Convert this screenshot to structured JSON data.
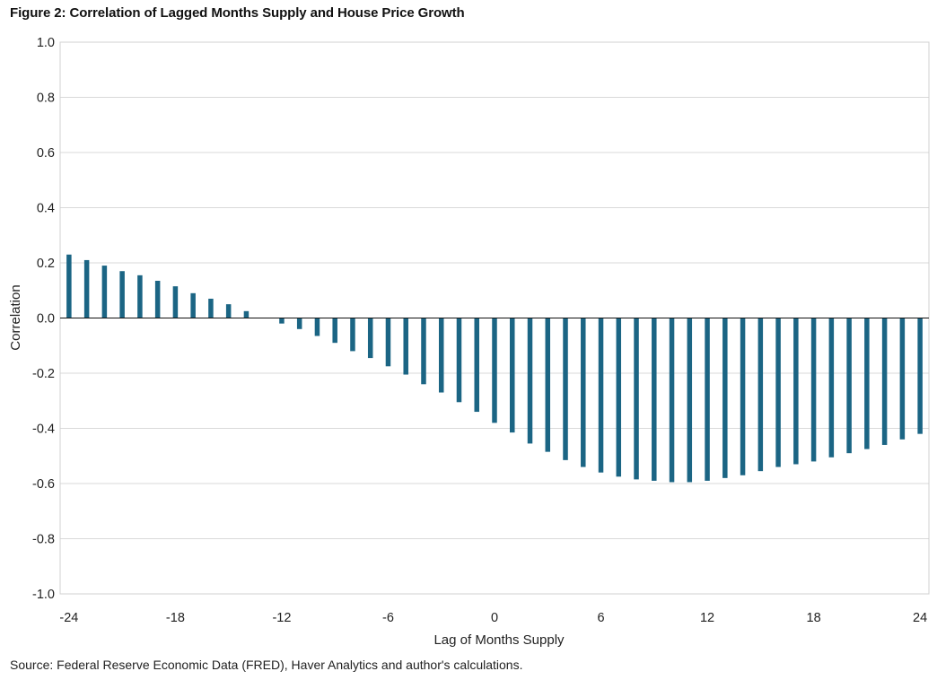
{
  "chart_data": {
    "type": "bar",
    "title": "Figure 2: Correlation of Lagged Months Supply and House Price Growth",
    "xlabel": "Lag of Months Supply",
    "ylabel": "Correlation",
    "ylim": [
      -1.0,
      1.0
    ],
    "xlim": [
      -24,
      24
    ],
    "y_ticks": [
      "1.0",
      "0.8",
      "0.6",
      "0.4",
      "0.2",
      "0.0",
      "-0.2",
      "-0.4",
      "-0.6",
      "-0.8",
      "-1.0"
    ],
    "y_tick_values": [
      1.0,
      0.8,
      0.6,
      0.4,
      0.2,
      0.0,
      -0.2,
      -0.4,
      -0.6,
      -0.8,
      -1.0
    ],
    "x_ticks": [
      "-24",
      "-18",
      "-12",
      "-6",
      "0",
      "6",
      "12",
      "18",
      "24"
    ],
    "x_tick_values": [
      -24,
      -18,
      -12,
      -6,
      0,
      6,
      12,
      18,
      24
    ],
    "grid": "horizontal",
    "bar_color": "#1b6584",
    "x": [
      -24,
      -23,
      -22,
      -21,
      -20,
      -19,
      -18,
      -17,
      -16,
      -15,
      -14,
      -13,
      -12,
      -11,
      -10,
      -9,
      -8,
      -7,
      -6,
      -5,
      -4,
      -3,
      -2,
      -1,
      0,
      1,
      2,
      3,
      4,
      5,
      6,
      7,
      8,
      9,
      10,
      11,
      12,
      13,
      14,
      15,
      16,
      17,
      18,
      19,
      20,
      21,
      22,
      23,
      24
    ],
    "values": [
      0.23,
      0.21,
      0.19,
      0.17,
      0.155,
      0.135,
      0.115,
      0.09,
      0.07,
      0.05,
      0.025,
      0.0,
      -0.02,
      -0.04,
      -0.065,
      -0.09,
      -0.12,
      -0.145,
      -0.175,
      -0.205,
      -0.24,
      -0.27,
      -0.305,
      -0.34,
      -0.38,
      -0.415,
      -0.455,
      -0.485,
      -0.515,
      -0.54,
      -0.56,
      -0.575,
      -0.585,
      -0.59,
      -0.595,
      -0.595,
      -0.59,
      -0.58,
      -0.57,
      -0.555,
      -0.54,
      -0.53,
      -0.52,
      -0.505,
      -0.49,
      -0.475,
      -0.46,
      -0.44,
      -0.42
    ]
  },
  "source": "Source: Federal Reserve Economic Data (FRED), Haver Analytics and author's calculations."
}
